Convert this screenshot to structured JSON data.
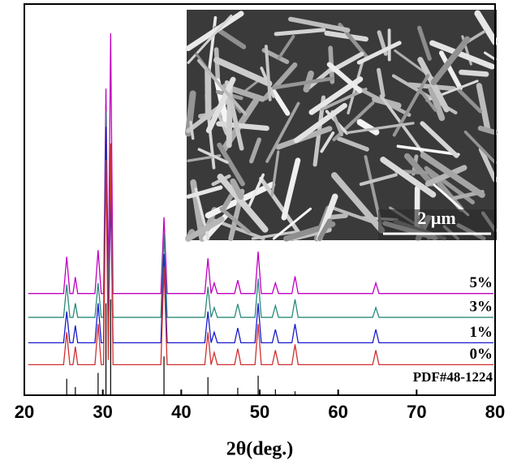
{
  "chart_data": {
    "type": "line",
    "x_label": "2θ(deg.)",
    "xlim": [
      20,
      80
    ],
    "xticks": [
      20,
      30,
      40,
      50,
      60,
      70,
      80
    ],
    "ylim": [
      0,
      100
    ],
    "x": [
      20.5,
      25.0,
      25.4,
      25.8,
      26.2,
      26.5,
      26.8,
      29.0,
      29.4,
      29.8,
      30.1,
      30.4,
      30.7,
      31.0,
      31.3,
      31.8,
      37.4,
      37.8,
      38.2,
      43.0,
      43.4,
      43.8,
      44.2,
      44.6,
      46.8,
      47.2,
      47.6,
      49.4,
      49.8,
      50.2,
      51.6,
      52.0,
      52.4,
      54.1,
      54.5,
      54.9,
      64.4,
      64.8,
      65.2,
      79.8
    ],
    "series": [
      {
        "name": "5%",
        "color": "#c000c0",
        "values": [
          26,
          26,
          35.4,
          26,
          26,
          30.2,
          26,
          26,
          37.1,
          26,
          26,
          78.4,
          27,
          92.5,
          26,
          26,
          26,
          45.5,
          26,
          26,
          35,
          26,
          28.7,
          26,
          26,
          29.4,
          26,
          26,
          36.7,
          26,
          26,
          28.7,
          26,
          26,
          30.4,
          26,
          26,
          28.7,
          26,
          26
        ]
      },
      {
        "name": "3%",
        "color": "#2a8a7a",
        "values": [
          19.9,
          19.9,
          28.3,
          19.9,
          19.9,
          23.5,
          19.9,
          19.9,
          28.7,
          19.9,
          19.9,
          72.7,
          21,
          61.2,
          19.9,
          19.9,
          19.9,
          41.3,
          19.9,
          19.9,
          27.7,
          19.9,
          22.4,
          19.9,
          19.9,
          23.3,
          19.9,
          19.9,
          29.8,
          19.9,
          19.9,
          22.9,
          19.9,
          19.9,
          24.5,
          19.9,
          19.9,
          22.4,
          19.9,
          19.9
        ]
      },
      {
        "name": "1%",
        "color": "#1a1acc",
        "values": [
          13.4,
          13.4,
          21.4,
          13.4,
          13.4,
          17.8,
          13.4,
          13.4,
          23.5,
          13.4,
          13.4,
          68.6,
          14.5,
          51.8,
          13.4,
          13.4,
          13.4,
          36.1,
          13.4,
          13.4,
          21.4,
          13.4,
          16.1,
          13.4,
          13.4,
          17.2,
          13.4,
          13.4,
          23.5,
          13.4,
          13.4,
          16.8,
          13.4,
          13.4,
          18.2,
          13.4,
          13.4,
          16.8,
          13.4,
          13.4
        ]
      },
      {
        "name": "0%",
        "color": "#d03030",
        "values": [
          7.8,
          7.8,
          16.1,
          7.8,
          7.8,
          12.4,
          7.8,
          7.8,
          18.2,
          7.8,
          7.8,
          60.2,
          9,
          64.4,
          7.8,
          7.8,
          7.8,
          32.9,
          7.8,
          7.8,
          16.1,
          7.8,
          10.9,
          7.8,
          7.8,
          11.9,
          7.8,
          7.8,
          18.2,
          7.8,
          7.8,
          11.5,
          7.8,
          7.8,
          13,
          7.8,
          7.8,
          11.5,
          7.8,
          7.8
        ]
      }
    ],
    "reference": {
      "name": "PDF#48-1224",
      "color": "#000000",
      "x": [
        25.4,
        26.5,
        29.4,
        30.4,
        31.0,
        37.8,
        43.4,
        47.2,
        49.8,
        52.0,
        54.5
      ],
      "values": [
        4.2,
        2.1,
        5.7,
        23.5,
        24.5,
        9.9,
        4.6,
        1.9,
        5,
        1.5,
        1
      ]
    },
    "inset": {
      "scale_bar": "2 μm"
    }
  }
}
